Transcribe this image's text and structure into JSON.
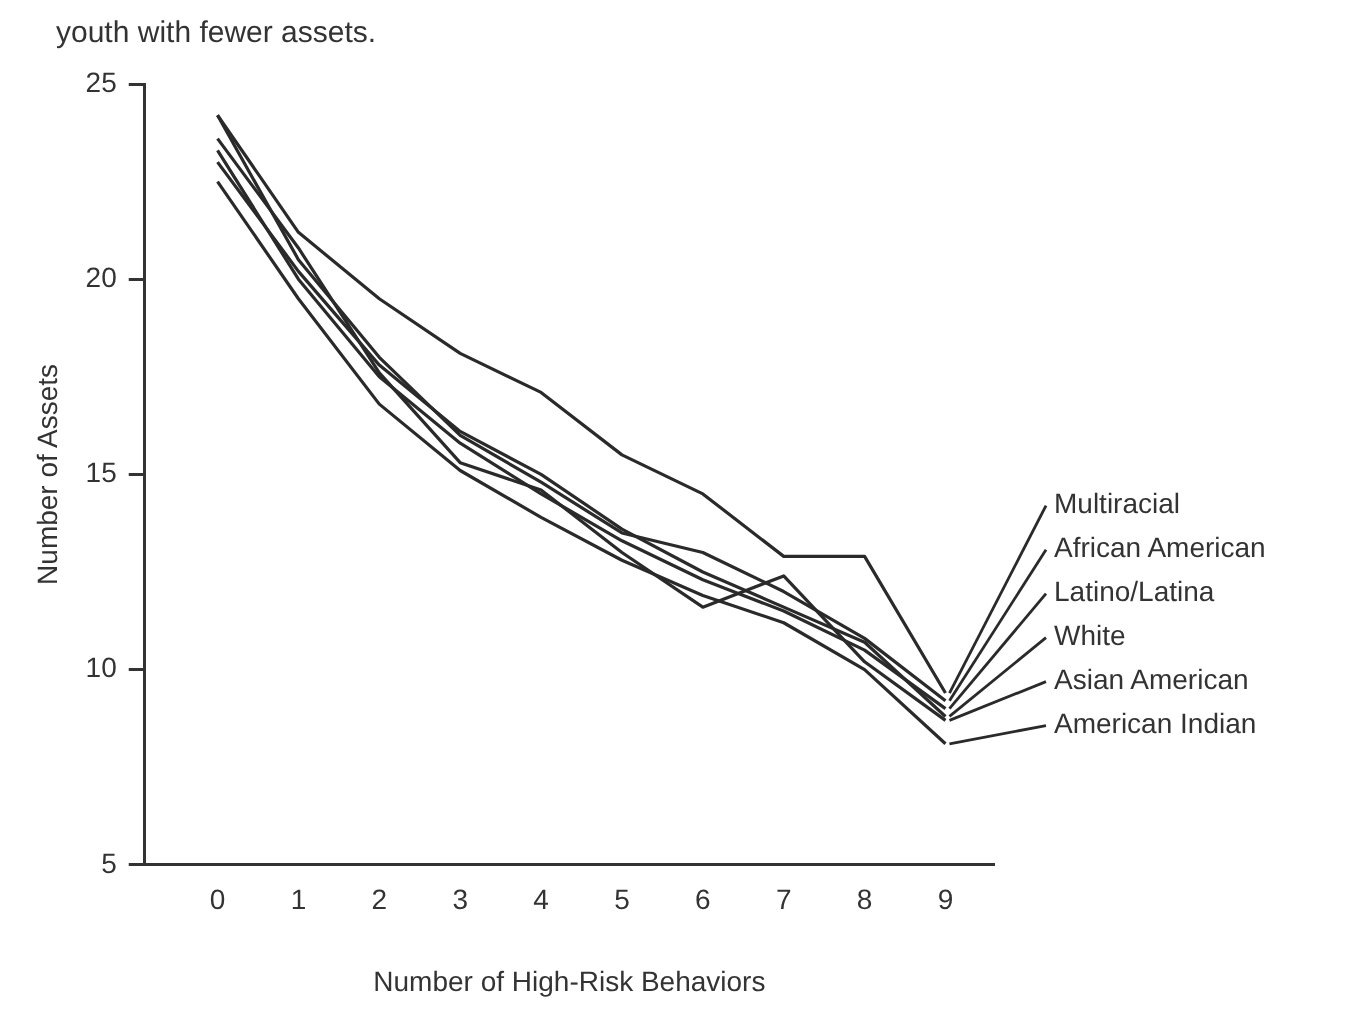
{
  "chart_data": {
    "type": "line",
    "xlabel": "Number of High-Risk Behaviors",
    "ylabel": "Number of Assets",
    "annotations": [
      "youth with fewer assets."
    ],
    "x": [
      0,
      1,
      2,
      3,
      4,
      5,
      6,
      7,
      8,
      9
    ],
    "series": [
      {
        "name": "Multiracial",
        "color": "#2a2a2a",
        "values": [
          24.2,
          21.2,
          19.5,
          18.1,
          17.1,
          15.5,
          14.5,
          12.9,
          12.9,
          9.4
        ]
      },
      {
        "name": "African American",
        "color": "#2a2a2a",
        "values": [
          24.2,
          20.5,
          18.0,
          16.0,
          14.8,
          13.5,
          13.0,
          12.0,
          10.8,
          9.2
        ]
      },
      {
        "name": "Latino/Latina",
        "color": "#2a2a2a",
        "values": [
          23.3,
          20.0,
          17.5,
          15.8,
          14.5,
          13.3,
          12.3,
          11.5,
          10.5,
          9.0
        ]
      },
      {
        "name": "White",
        "color": "#2a2a2a",
        "values": [
          23.0,
          20.2,
          17.8,
          16.1,
          15.0,
          13.6,
          12.5,
          11.6,
          10.7,
          8.8
        ]
      },
      {
        "name": "Asian American",
        "color": "#2a2a2a",
        "values": [
          23.6,
          20.8,
          17.6,
          15.3,
          14.6,
          13.0,
          11.6,
          12.4,
          10.2,
          8.7
        ]
      },
      {
        "name": "American Indian",
        "color": "#2a2a2a",
        "values": [
          22.5,
          19.5,
          16.8,
          15.1,
          13.9,
          12.8,
          11.9,
          11.2,
          10.0,
          8.1
        ]
      }
    ],
    "xlim": [
      -0.9,
      9.6
    ],
    "xticks": [
      0,
      1,
      2,
      3,
      4,
      5,
      6,
      7,
      8,
      9
    ],
    "ylim": [
      5,
      25
    ],
    "yticks": [
      5,
      10,
      15,
      20,
      25
    ],
    "grid": false,
    "legend": "right",
    "marker": "none",
    "line_style": "solid"
  }
}
